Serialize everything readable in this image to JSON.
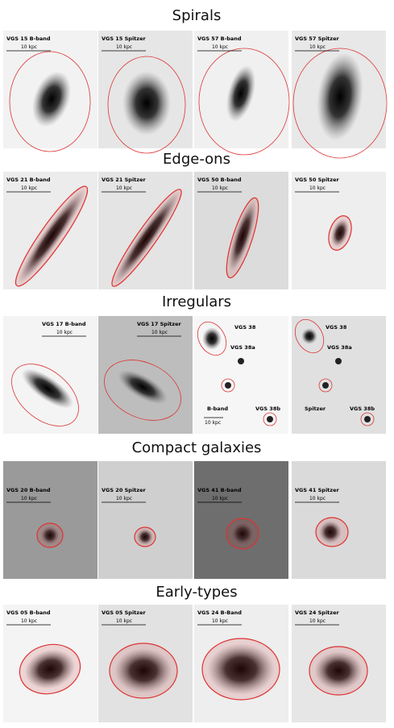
{
  "figure": {
    "sections": [
      {
        "title": "Spirals",
        "panels": [
          {
            "label": "VGS 15 B-band",
            "scale": "10 kpc"
          },
          {
            "label": "VGS 15 Spitzer",
            "scale": "10 kpc"
          },
          {
            "label": "VGS 57 B-band",
            "scale": "10 kpc"
          },
          {
            "label": "VGS 57 Spitzer",
            "scale": "10 kpc"
          }
        ]
      },
      {
        "title": "Edge-ons",
        "panels": [
          {
            "label": "VGS 21 B-band",
            "scale": "10 kpc"
          },
          {
            "label": "VGS 21 Spitzer",
            "scale": "10 kpc"
          },
          {
            "label": "VGS 50 B-band",
            "scale": "10 kpc"
          },
          {
            "label": "VGS 50 Spitzer",
            "scale": "10 kpc"
          }
        ]
      },
      {
        "title": "Irregulars",
        "panels": [
          {
            "label": "VGS 17 B-band",
            "scale": "10 kpc"
          },
          {
            "label": "VGS 17 Spitzer",
            "scale": "10 kpc"
          },
          {
            "labels": [
              "VGS 38",
              "VGS 38a",
              "B-band",
              "VGS 38b"
            ],
            "scale": "10 kpc"
          },
          {
            "labels": [
              "VGS 38",
              "VGS 38a",
              "Spitzer",
              "VGS 38b"
            ]
          }
        ]
      },
      {
        "title": "Compact galaxies",
        "panels": [
          {
            "label": "VGS 20 B-band",
            "scale": "10 kpc"
          },
          {
            "label": "VGS 20 Spitzer",
            "scale": "10 kpc"
          },
          {
            "label": "VGS 41 B-band",
            "scale": "10 kpc"
          },
          {
            "label": "VGS 41 Spitzer",
            "scale": "10 kpc"
          }
        ]
      },
      {
        "title": "Early-types",
        "panels": [
          {
            "label": "VGS 05 B-band",
            "scale": "10 kpc"
          },
          {
            "label": "VGS 05 Spitzer",
            "scale": "10 kpc"
          },
          {
            "label": "VGS 24 B-Band",
            "scale": "10 kpc"
          },
          {
            "label": "VGS 24 Spitzer",
            "scale": "10 kpc"
          }
        ]
      }
    ]
  }
}
